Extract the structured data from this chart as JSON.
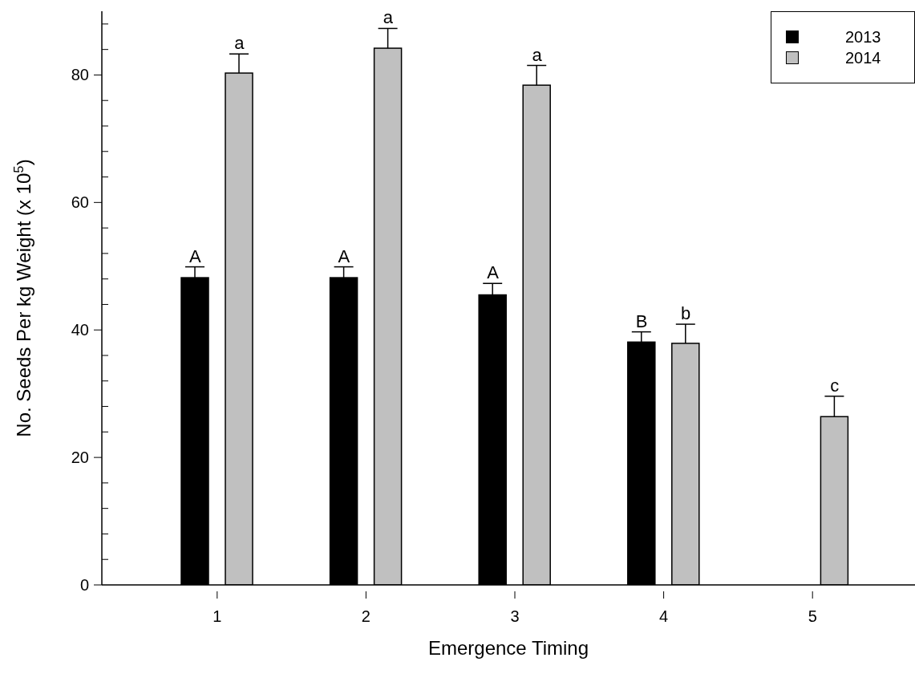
{
  "chart_data": {
    "type": "bar",
    "xlabel": "Emergence Timing",
    "ylabel": "No. Seeds Per kg Weight (x 10$^{5}$)",
    "categories": [
      "1",
      "2",
      "3",
      "4",
      "5"
    ],
    "series": [
      {
        "name": "2013",
        "color": "#000000",
        "values": [
          48.2,
          48.2,
          45.5,
          38.1,
          null
        ],
        "errors": [
          1.7,
          1.7,
          1.8,
          1.6,
          null
        ]
      },
      {
        "name": "2014",
        "color": "#c0c0c0",
        "values": [
          80.3,
          84.2,
          78.4,
          37.9,
          26.4
        ],
        "errors": [
          3.0,
          3.1,
          3.1,
          3.0,
          3.2
        ]
      }
    ],
    "ylim": [
      0,
      90
    ],
    "yticks": [
      0,
      {
        "value": 4,
        "label": null
      },
      {
        "value": 8,
        "label": null
      },
      {
        "value": 12,
        "label": null
      },
      {
        "value": 16,
        "label": null
      },
      20,
      {
        "value": 24,
        "label": null
      },
      {
        "value": 28,
        "label": null
      },
      {
        "value": 32,
        "label": null
      },
      {
        "value": 36,
        "label": null
      },
      40,
      {
        "value": 44,
        "label": null
      },
      {
        "value": 48,
        "label": null
      },
      {
        "value": 52,
        "label": null
      },
      {
        "value": 56,
        "label": null
      },
      60,
      {
        "value": 64,
        "label": null
      },
      {
        "value": 68,
        "label": null
      },
      {
        "value": 72,
        "label": null
      },
      {
        "value": 76,
        "label": null
      },
      80,
      {
        "value": 84,
        "label": null
      },
      {
        "value": 88,
        "label": null
      }
    ],
    "annotations": [
      "A",
      "a",
      "A",
      "a",
      "A",
      "a",
      "B",
      "b",
      "c"
    ],
    "legend": "top right",
    "grid": false
  }
}
